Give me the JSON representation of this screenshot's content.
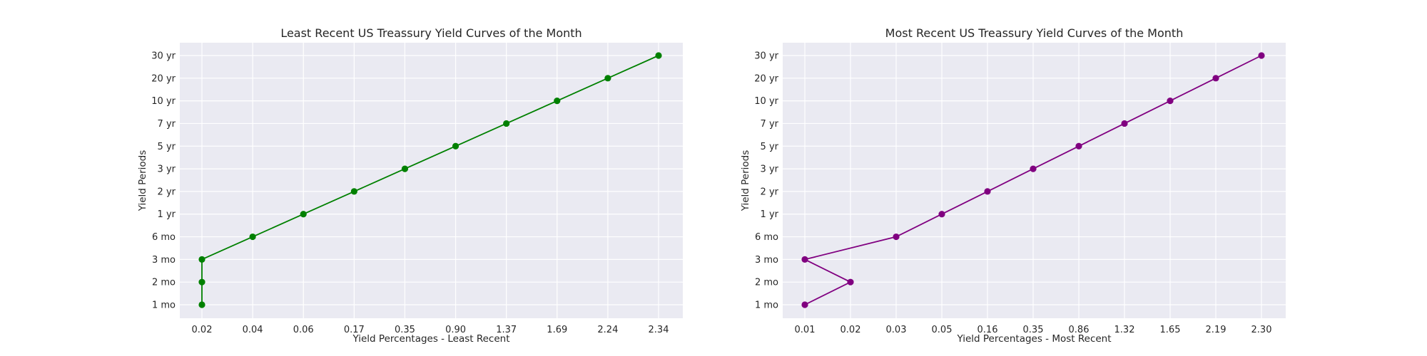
{
  "chart_data": [
    {
      "type": "line",
      "title": "Least Recent US Treassury Yield Curves of the Month",
      "xlabel": "Yield Percentages - Least Recent",
      "ylabel": "Yield Periods",
      "x_categories": [
        "0.02",
        "0.04",
        "0.06",
        "0.17",
        "0.35",
        "0.90",
        "1.37",
        "1.69",
        "2.24",
        "2.34"
      ],
      "y_categories": [
        "1 mo",
        "2 mo",
        "3 mo",
        "6 mo",
        "1 yr",
        "2 yr",
        "3 yr",
        "5 yr",
        "7 yr",
        "10 yr",
        "20 yr",
        "30 yr"
      ],
      "series": [
        {
          "color": "#008000",
          "points": [
            {
              "x": "0.02",
              "y": "1 mo"
            },
            {
              "x": "0.02",
              "y": "2 mo"
            },
            {
              "x": "0.02",
              "y": "3 mo"
            },
            {
              "x": "0.04",
              "y": "6 mo"
            },
            {
              "x": "0.06",
              "y": "1 yr"
            },
            {
              "x": "0.17",
              "y": "2 yr"
            },
            {
              "x": "0.35",
              "y": "3 yr"
            },
            {
              "x": "0.90",
              "y": "5 yr"
            },
            {
              "x": "1.37",
              "y": "7 yr"
            },
            {
              "x": "1.69",
              "y": "10 yr"
            },
            {
              "x": "2.24",
              "y": "20 yr"
            },
            {
              "x": "2.34",
              "y": "30 yr"
            }
          ]
        }
      ],
      "grid": true,
      "x_scale": "categorical",
      "y_scale": "categorical"
    },
    {
      "type": "line",
      "title": "Most Recent US Treassury Yield Curves of the Month",
      "xlabel": "Yield Percentages - Most Recent",
      "ylabel": "Yield Periods",
      "x_categories": [
        "0.01",
        "0.02",
        "0.03",
        "0.05",
        "0.16",
        "0.35",
        "0.86",
        "1.32",
        "1.65",
        "2.19",
        "2.30"
      ],
      "y_categories": [
        "1 mo",
        "2 mo",
        "3 mo",
        "6 mo",
        "1 yr",
        "2 yr",
        "3 yr",
        "5 yr",
        "7 yr",
        "10 yr",
        "20 yr",
        "30 yr"
      ],
      "series": [
        {
          "color": "#800080",
          "points": [
            {
              "x": "0.01",
              "y": "1 mo"
            },
            {
              "x": "0.02",
              "y": "2 mo"
            },
            {
              "x": "0.01",
              "y": "3 mo"
            },
            {
              "x": "0.03",
              "y": "6 mo"
            },
            {
              "x": "0.05",
              "y": "1 yr"
            },
            {
              "x": "0.16",
              "y": "2 yr"
            },
            {
              "x": "0.35",
              "y": "3 yr"
            },
            {
              "x": "0.86",
              "y": "5 yr"
            },
            {
              "x": "1.32",
              "y": "7 yr"
            },
            {
              "x": "1.65",
              "y": "10 yr"
            },
            {
              "x": "2.19",
              "y": "20 yr"
            },
            {
              "x": "2.30",
              "y": "30 yr"
            }
          ]
        }
      ],
      "grid": true,
      "x_scale": "categorical",
      "y_scale": "categorical"
    }
  ]
}
